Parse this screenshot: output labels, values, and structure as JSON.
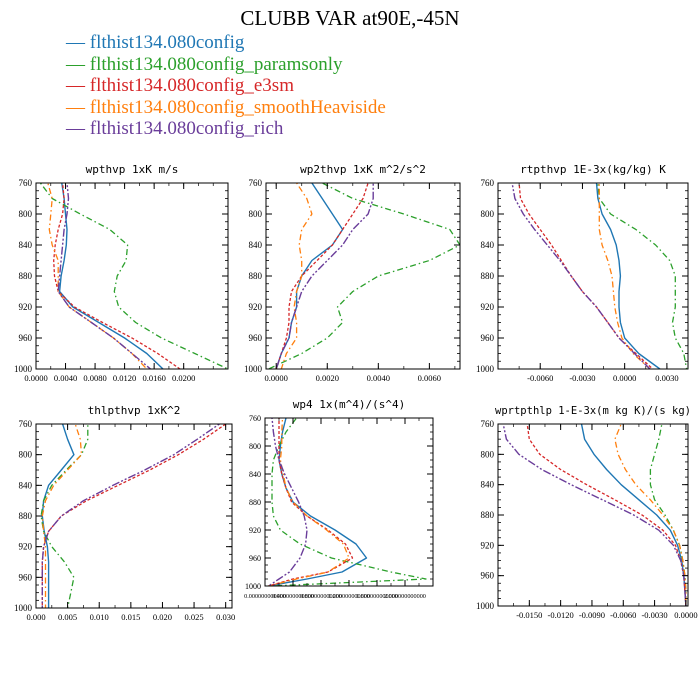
{
  "title": "CLUBB VAR at90E,-45N",
  "legend": [
    {
      "label": "flthist134.080config",
      "color": "#1f77b4"
    },
    {
      "label": "flthist134.080config_paramsonly",
      "color": "#2ca02c"
    },
    {
      "label": "flthist134.080config_e3sm",
      "color": "#d62728"
    },
    {
      "label": "flthist134.080config_smoothHeaviside",
      "color": "#ff7f0e"
    },
    {
      "label": "flthist134.080config_rich",
      "color": "#6a3d9a"
    }
  ],
  "chart_data": [
    {
      "type": "line",
      "title": "wpthvp 1xK m/s",
      "xlim": [
        0.0,
        0.026
      ],
      "xticks": [
        "0.0000",
        "0.0040",
        "0.0080",
        "0.0120",
        "0.0160",
        "0.0200"
      ],
      "xtick_values": [
        0.0,
        0.004,
        0.008,
        0.012,
        0.016,
        0.02
      ],
      "ylim": [
        760,
        1000
      ],
      "yticks": [
        760,
        800,
        840,
        880,
        920,
        960,
        1000
      ],
      "levels": [
        750,
        760,
        780,
        800,
        820,
        840,
        860,
        880,
        900,
        920,
        940,
        960,
        980,
        1000
      ],
      "series": [
        {
          "values": [
            0.0034,
            0.0035,
            0.0038,
            0.004,
            0.0042,
            0.0041,
            0.0038,
            0.0034,
            0.0032,
            0.005,
            0.0085,
            0.012,
            0.015,
            0.0172
          ]
        },
        {
          "values": [
            0.0,
            0.0006,
            0.0022,
            0.006,
            0.01,
            0.0124,
            0.0122,
            0.011,
            0.0106,
            0.0112,
            0.0135,
            0.017,
            0.0215,
            0.026
          ]
        },
        {
          "values": [
            0.0035,
            0.0036,
            0.0038,
            0.0036,
            0.003,
            0.0026,
            0.0024,
            0.0025,
            0.003,
            0.0052,
            0.009,
            0.013,
            0.0165,
            0.0195
          ]
        },
        {
          "values": [
            0.0012,
            0.0016,
            0.0022,
            0.002,
            0.0018,
            0.0022,
            0.003,
            0.003,
            0.003,
            0.0045,
            0.0075,
            0.0105,
            0.013,
            0.015
          ]
        },
        {
          "values": [
            0.004,
            0.0042,
            0.0044,
            0.0042,
            0.0038,
            0.0036,
            0.0034,
            0.0032,
            0.003,
            0.0045,
            0.0075,
            0.0105,
            0.013,
            0.0155
          ]
        }
      ]
    },
    {
      "type": "line",
      "title": "wp2thvp 1xK m^2/s^2",
      "xlim": [
        -0.0004,
        0.0072
      ],
      "xticks": [
        "0.0000",
        "0.0020",
        "0.0040",
        "0.0060"
      ],
      "xtick_values": [
        0.0,
        0.002,
        0.004,
        0.006
      ],
      "ylim": [
        760,
        1000
      ],
      "yticks": [
        760,
        800,
        840,
        880,
        920,
        960,
        1000
      ],
      "levels": [
        750,
        760,
        780,
        800,
        820,
        840,
        860,
        880,
        900,
        920,
        940,
        960,
        980,
        1000
      ],
      "series": [
        {
          "values": [
            0.0012,
            0.0014,
            0.0018,
            0.0022,
            0.0026,
            0.0022,
            0.0014,
            0.001,
            0.0008,
            0.0008,
            0.0006,
            0.0005,
            0.0002,
            0.0
          ]
        },
        {
          "values": [
            0.0014,
            0.0018,
            0.003,
            0.005,
            0.0068,
            0.0072,
            0.006,
            0.004,
            0.003,
            0.0024,
            0.0026,
            0.002,
            0.001,
            -0.0003
          ]
        },
        {
          "values": [
            0.0038,
            0.0036,
            0.0034,
            0.003,
            0.0026,
            0.0022,
            0.0016,
            0.001,
            0.0006,
            0.0005,
            0.0005,
            0.0004,
            0.0002,
            0.0
          ]
        },
        {
          "values": [
            0.001,
            0.0008,
            0.0012,
            0.0014,
            0.001,
            0.0009,
            0.001,
            0.001,
            0.0008,
            0.0007,
            0.0008,
            0.0008,
            0.0004,
            0.0002
          ]
        },
        {
          "values": [
            0.0036,
            0.0038,
            0.0038,
            0.0036,
            0.003,
            0.0026,
            0.002,
            0.0014,
            0.001,
            0.0008,
            0.0006,
            0.0005,
            0.0002,
            0.0
          ]
        }
      ]
    },
    {
      "type": "line",
      "title": "rtpthvp 1E-3x(kg/kg) K",
      "xlim": [
        -0.009,
        0.0045
      ],
      "xticks": [
        "-0.0060",
        "-0.0030",
        "0.0000",
        "0.0030"
      ],
      "xtick_values": [
        -0.006,
        -0.003,
        0.0,
        0.003
      ],
      "ylim": [
        760,
        1000
      ],
      "yticks": [
        760,
        800,
        840,
        880,
        920,
        960,
        1000
      ],
      "levels": [
        750,
        760,
        780,
        800,
        820,
        840,
        860,
        880,
        900,
        920,
        940,
        960,
        980,
        1000
      ],
      "series": [
        {
          "values": [
            -0.002,
            -0.002,
            -0.0019,
            -0.0016,
            -0.001,
            -0.0006,
            -0.0004,
            -0.0003,
            -0.0004,
            -0.0004,
            -0.0003,
            0.0,
            0.001,
            0.0025
          ]
        },
        {
          "values": [
            -0.002,
            -0.0019,
            -0.0018,
            -0.001,
            0.0008,
            0.0022,
            0.0032,
            0.0036,
            0.0036,
            0.0036,
            0.0034,
            0.0036,
            0.0042,
            0.0044
          ]
        },
        {
          "values": [
            -0.0075,
            -0.0075,
            -0.0074,
            -0.0068,
            -0.006,
            -0.0052,
            -0.0045,
            -0.0038,
            -0.003,
            -0.002,
            -0.0012,
            -0.0004,
            0.0008,
            0.002
          ]
        },
        {
          "values": [
            -0.0018,
            -0.0018,
            -0.0018,
            -0.0018,
            -0.0018,
            -0.0016,
            -0.0012,
            -0.0009,
            -0.0008,
            -0.0007,
            -0.0005,
            -0.0002,
            0.0006,
            0.0018
          ]
        },
        {
          "values": [
            -0.008,
            -0.008,
            -0.0078,
            -0.0072,
            -0.0064,
            -0.0055,
            -0.0046,
            -0.0038,
            -0.003,
            -0.002,
            -0.0012,
            -0.0004,
            0.0007,
            0.0018
          ]
        }
      ]
    },
    {
      "type": "line",
      "title": "thlpthvp 1xK^2",
      "xlim": [
        0.0,
        0.031
      ],
      "xticks": [
        "0.000",
        "0.005",
        "0.010",
        "0.015",
        "0.020",
        "0.025",
        "0.030"
      ],
      "xtick_values": [
        0.0,
        0.005,
        0.01,
        0.015,
        0.02,
        0.025,
        0.03
      ],
      "ylim": [
        760,
        1000
      ],
      "yticks": [
        760,
        800,
        840,
        880,
        920,
        960,
        1000
      ],
      "levels": [
        750,
        760,
        780,
        800,
        820,
        840,
        860,
        880,
        900,
        920,
        940,
        960,
        980,
        1000
      ],
      "series": [
        {
          "values": [
            0.004,
            0.0042,
            0.005,
            0.006,
            0.004,
            0.002,
            0.0012,
            0.001,
            0.0013,
            0.0018,
            0.002,
            0.002,
            0.002,
            0.002
          ]
        },
        {
          "values": [
            0.0082,
            0.0082,
            0.0082,
            0.0072,
            0.0048,
            0.0025,
            0.0012,
            0.0008,
            0.0012,
            0.0025,
            0.0045,
            0.006,
            0.0055,
            0.005
          ]
        },
        {
          "values": [
            0.031,
            0.03,
            0.0265,
            0.0225,
            0.018,
            0.013,
            0.008,
            0.004,
            0.002,
            0.0012,
            0.001,
            0.001,
            0.001,
            0.001
          ]
        },
        {
          "values": [
            0.006,
            0.0062,
            0.007,
            0.0072,
            0.005,
            0.0028,
            0.0015,
            0.001,
            0.0012,
            0.0015,
            0.0015,
            0.0015,
            0.0015,
            0.0015
          ]
        },
        {
          "values": [
            0.03,
            0.029,
            0.0255,
            0.0218,
            0.0172,
            0.0122,
            0.0075,
            0.004,
            0.002,
            0.0012,
            0.001,
            0.001,
            0.001,
            0.001
          ]
        }
      ]
    },
    {
      "type": "line",
      "title": "wp4 1x(m^4)/(s^4)",
      "xlim": [
        0.0,
        2.4
      ],
      "xticks": [
        "0.000000000000",
        "0.400000000000",
        "0.800000000000",
        "1.200000000000",
        "1.600000000000",
        "2.000000000000"
      ],
      "xtick_values": [
        0.0,
        0.4,
        0.8,
        1.2,
        1.6,
        2.0
      ],
      "ylim": [
        760,
        1000
      ],
      "yticks": [
        760,
        800,
        840,
        880,
        920,
        960,
        1000
      ],
      "levels": [
        750,
        760,
        780,
        800,
        820,
        840,
        860,
        880,
        900,
        920,
        940,
        960,
        980,
        990,
        1000
      ],
      "series": [
        {
          "values": [
            0.35,
            0.3,
            0.25,
            0.22,
            0.2,
            0.24,
            0.3,
            0.4,
            0.65,
            1.0,
            1.3,
            1.45,
            1.1,
            0.6,
            0.05
          ]
        },
        {
          "values": [
            0.6,
            0.45,
            0.3,
            0.2,
            0.12,
            0.1,
            0.1,
            0.1,
            0.12,
            0.22,
            0.5,
            0.95,
            1.8,
            2.3,
            0.1
          ]
        },
        {
          "values": [
            0.2,
            0.2,
            0.2,
            0.2,
            0.2,
            0.24,
            0.3,
            0.38,
            0.6,
            0.9,
            1.15,
            1.25,
            0.9,
            0.4,
            0.05
          ]
        },
        {
          "values": [
            0.25,
            0.25,
            0.24,
            0.24,
            0.22,
            0.26,
            0.3,
            0.4,
            0.6,
            0.88,
            1.12,
            1.2,
            0.9,
            0.45,
            0.05
          ]
        },
        {
          "values": [
            0.1,
            0.1,
            0.12,
            0.15,
            0.2,
            0.28,
            0.38,
            0.48,
            0.56,
            0.6,
            0.58,
            0.5,
            0.35,
            0.2,
            0.05
          ]
        }
      ]
    },
    {
      "type": "line",
      "title": "wprtpthlp 1-E-3x(m kg K)/(s kg)",
      "xlim": [
        -0.018,
        0.0002
      ],
      "xticks": [
        "-0.0150",
        "-0.0120",
        "-0.0090",
        "-0.0060",
        "-0.0030",
        "0.0000"
      ],
      "xtick_values": [
        -0.015,
        -0.012,
        -0.009,
        -0.006,
        -0.003,
        0.0
      ],
      "ylim": [
        760,
        1000
      ],
      "yticks": [
        760,
        800,
        840,
        880,
        920,
        960,
        1000
      ],
      "levels": [
        750,
        760,
        780,
        800,
        820,
        840,
        860,
        880,
        900,
        920,
        940,
        960,
        980,
        1000
      ],
      "series": [
        {
          "values": [
            -0.01,
            -0.01,
            -0.0097,
            -0.0088,
            -0.0076,
            -0.0062,
            -0.0045,
            -0.0028,
            -0.0015,
            -0.0008,
            -0.0004,
            -0.0002,
            -0.0001,
            0.0
          ]
        },
        {
          "values": [
            -0.0022,
            -0.0023,
            -0.0026,
            -0.003,
            -0.0034,
            -0.0034,
            -0.003,
            -0.002,
            -0.0012,
            -0.0006,
            -0.0003,
            -0.0001,
            0.0,
            0.0
          ]
        },
        {
          "values": [
            -0.015,
            -0.0152,
            -0.015,
            -0.014,
            -0.012,
            -0.0095,
            -0.0068,
            -0.0042,
            -0.0022,
            -0.001,
            -0.0005,
            -0.0002,
            -0.0001,
            0.0
          ]
        },
        {
          "values": [
            -0.006,
            -0.0062,
            -0.0068,
            -0.0065,
            -0.0058,
            -0.0048,
            -0.0034,
            -0.0022,
            -0.0012,
            -0.0006,
            -0.0003,
            -0.0001,
            0.0,
            0.0
          ]
        },
        {
          "values": [
            -0.0175,
            -0.0175,
            -0.0172,
            -0.016,
            -0.0138,
            -0.011,
            -0.008,
            -0.005,
            -0.0026,
            -0.0012,
            -0.0005,
            -0.0002,
            -0.0001,
            0.0
          ]
        }
      ]
    }
  ]
}
